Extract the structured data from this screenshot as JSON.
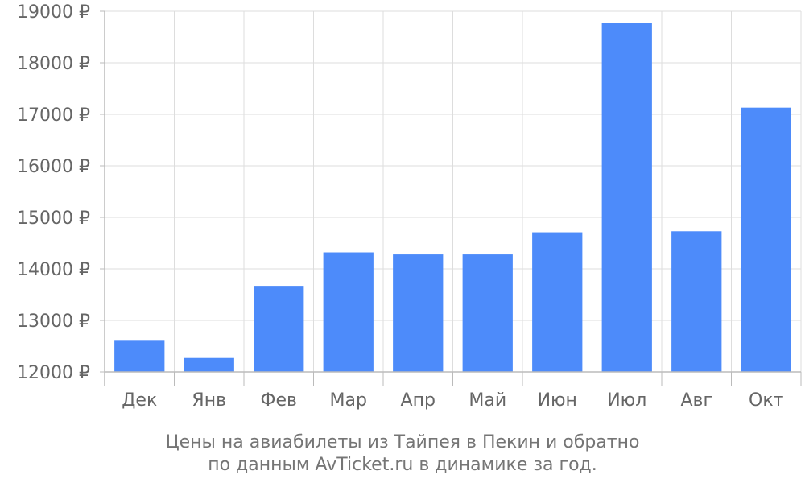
{
  "chart_data": {
    "type": "bar",
    "title": "Цены на авиабилеты из Тайпея в Пекин и обратно",
    "subtitle": "по данным AvTicket.ru в динамике за год.",
    "xlabel": "",
    "ylabel": "",
    "categories": [
      "Дек",
      "Янв",
      "Фев",
      "Мар",
      "Апр",
      "Май",
      "Июн",
      "Июл",
      "Авг",
      "Окт"
    ],
    "values": [
      12620,
      12270,
      13670,
      14320,
      14280,
      14280,
      14710,
      18770,
      14730,
      17130
    ],
    "ylim": [
      12000,
      19000
    ],
    "yticks": [
      12000,
      13000,
      14000,
      15000,
      16000,
      17000,
      18000,
      19000
    ],
    "ytick_labels": [
      "12000 ₽",
      "13000 ₽",
      "14000 ₽",
      "15000 ₽",
      "16000 ₽",
      "17000 ₽",
      "18000 ₽",
      "19000 ₽"
    ],
    "grid": true,
    "colors": {
      "bar": "#4d8bfa",
      "grid": "#dddddd",
      "axis": "#bbbbbb",
      "text": "#666666"
    }
  }
}
